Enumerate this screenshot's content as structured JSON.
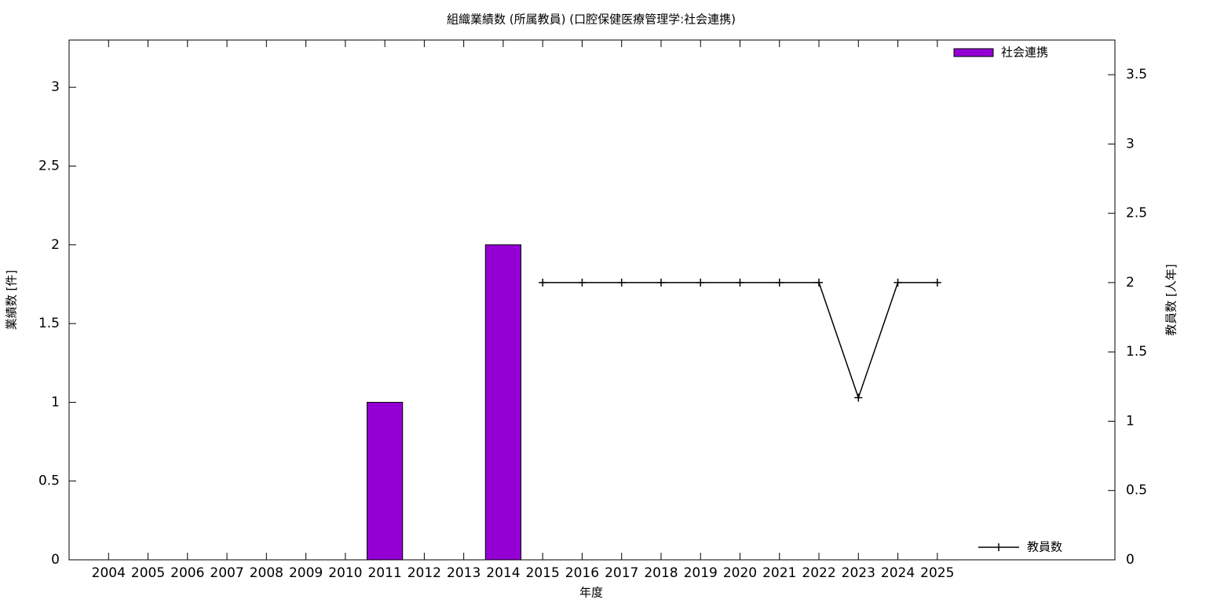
{
  "chart_data": {
    "type": "bar+line",
    "title": "組織業績数 (所属教員) (口腔保健医療管理学:社会連携)",
    "x_label": "年度",
    "y_label": "業績数 [件]",
    "y2_label": "教員数 [人年]",
    "categories": [
      "2004",
      "2005",
      "2006",
      "2007",
      "2008",
      "2009",
      "2010",
      "2011",
      "2012",
      "2013",
      "2014",
      "2015",
      "2016",
      "2017",
      "2018",
      "2019",
      "2020",
      "2021",
      "2022",
      "2023",
      "2024",
      "2025"
    ],
    "series": [
      {
        "name": "社会連携",
        "type": "bar",
        "color": "#9400d3",
        "legend": "top right",
        "values": [
          0,
          0,
          0,
          0,
          0,
          0,
          0,
          1,
          0,
          0,
          2,
          0,
          0,
          0,
          0,
          0,
          0,
          0,
          0,
          0,
          0,
          0
        ]
      },
      {
        "name": "教員数",
        "type": "line",
        "axis": "y2",
        "color": "#000000",
        "legend": "bottom right",
        "values": [
          null,
          null,
          null,
          null,
          null,
          null,
          null,
          null,
          null,
          null,
          null,
          2,
          2,
          2,
          2,
          2,
          2,
          2,
          2,
          1.17,
          2,
          2
        ]
      }
    ],
    "ylim": [
      0,
      3.3
    ],
    "yticks": [
      0,
      0.5,
      1,
      1.5,
      2,
      2.5,
      3
    ],
    "y2lim": [
      0,
      3.75
    ],
    "y2ticks": [
      0,
      0.5,
      1,
      1.5,
      2,
      2.5,
      3,
      3.5
    ],
    "grid": false
  }
}
